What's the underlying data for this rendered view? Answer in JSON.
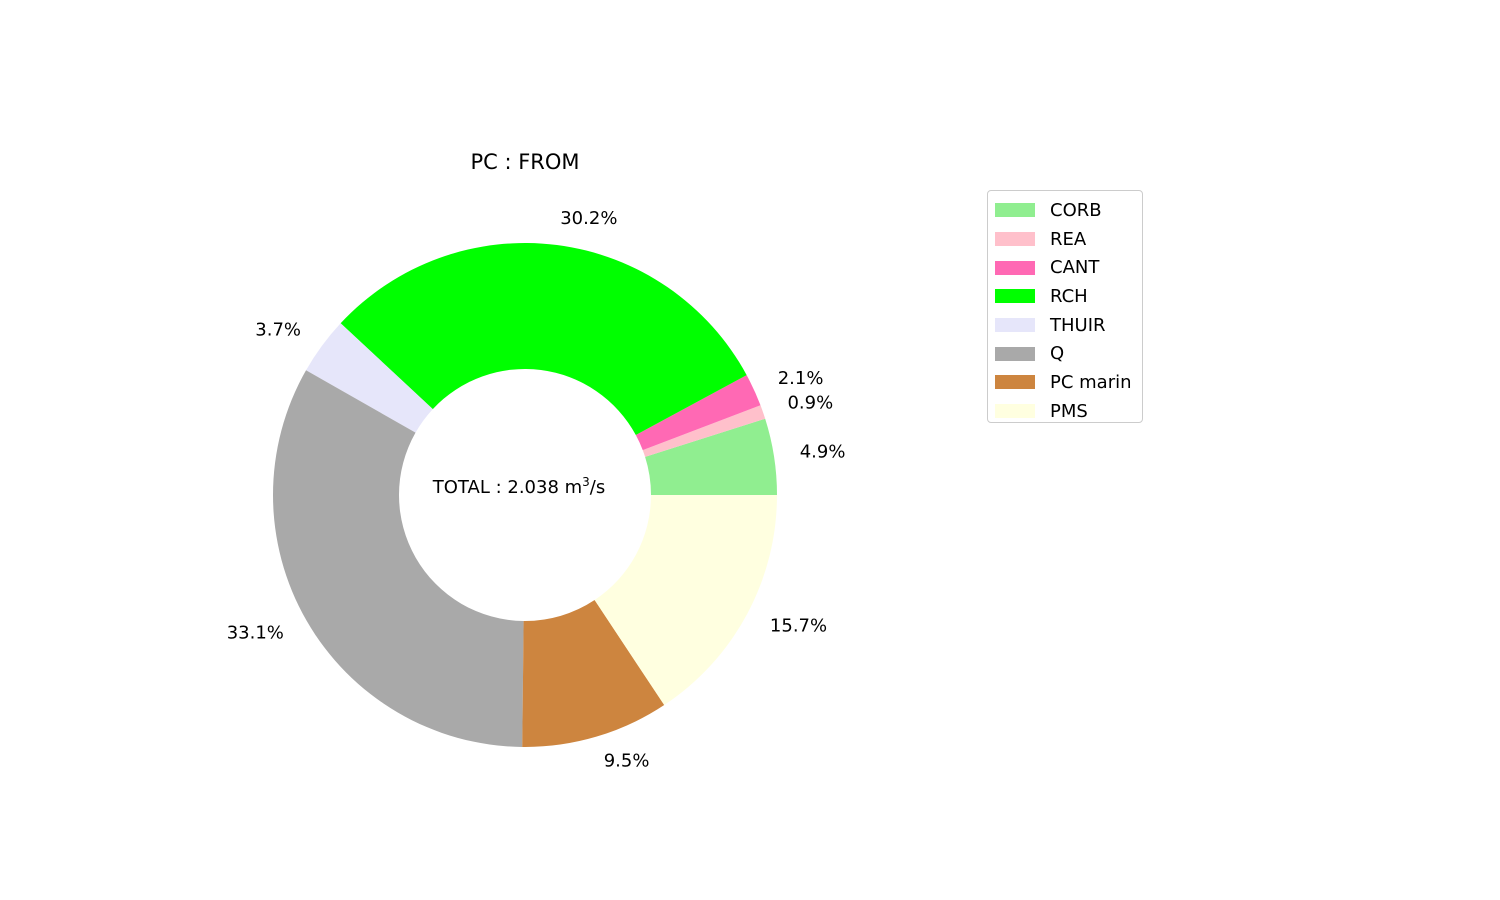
{
  "chart_data": {
    "type": "pie",
    "title": "PC : FROM",
    "center_text": {
      "prefix": "TOTAL : 2.038 m",
      "sup": "3",
      "suffix": "/s"
    },
    "slices": [
      {
        "label": "CORB",
        "value": 4.9,
        "pct_label": "4.9%",
        "color": "#90ee90"
      },
      {
        "label": "REA",
        "value": 0.9,
        "pct_label": "0.9%",
        "color": "#ffc0cb"
      },
      {
        "label": "CANT",
        "value": 2.1,
        "pct_label": "2.1%",
        "color": "#ff69b4"
      },
      {
        "label": "RCH",
        "value": 30.2,
        "pct_label": "30.2%",
        "color": "#00ff00"
      },
      {
        "label": "THUIR",
        "value": 3.7,
        "pct_label": "3.7%",
        "color": "#e6e6fa"
      },
      {
        "label": "Q",
        "value": 33.1,
        "pct_label": "33.1%",
        "color": "#a9a9a9"
      },
      {
        "label": "PC marin",
        "value": 9.5,
        "pct_label": "9.5%",
        "color": "#cd853f"
      },
      {
        "label": "PMS",
        "value": 15.7,
        "pct_label": "15.7%",
        "color": "#ffffe0"
      }
    ],
    "start_angle_deg": 0,
    "direction": "counterclockwise",
    "donut": true,
    "legend_position": "right"
  }
}
